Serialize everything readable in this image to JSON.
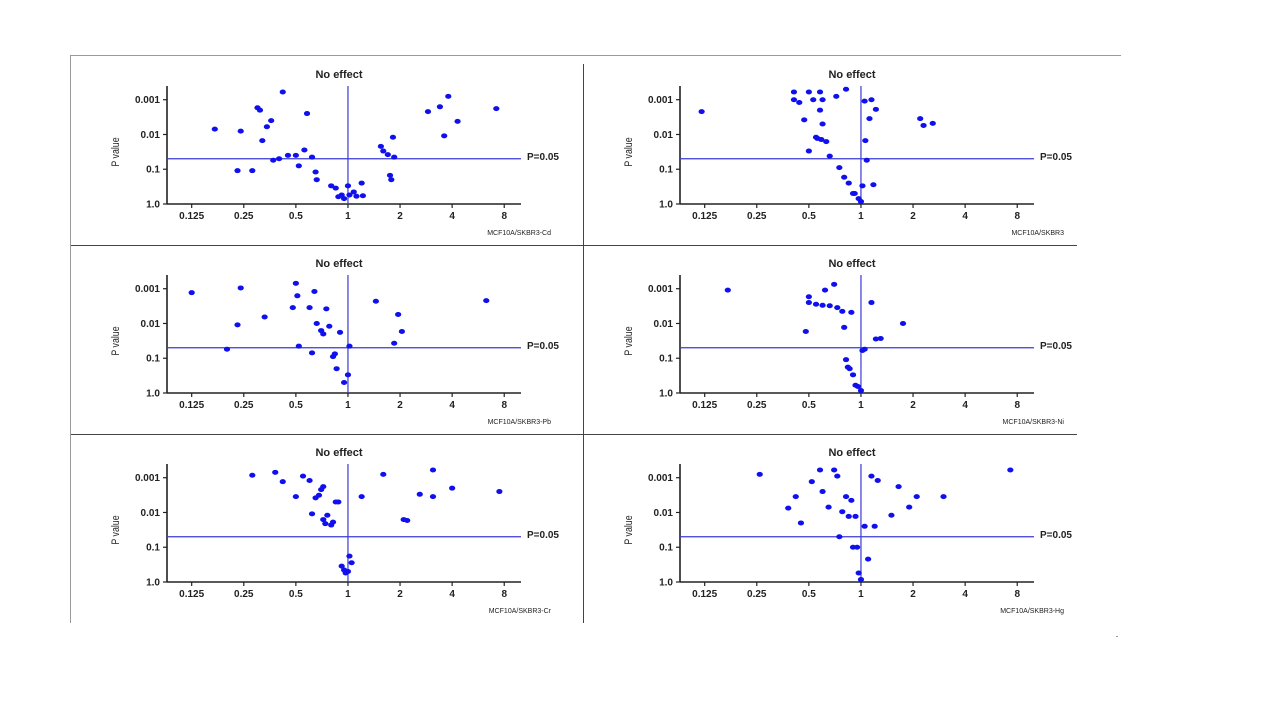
{
  "chart_data": [
    {
      "type": "scatter",
      "title": "No effect",
      "ylabel": "P value",
      "panel_label": "MCF10A/SKBR3-Cd",
      "threshold_label": "P=0.05",
      "x_scale": "log2",
      "y_scale": "log10-reversed",
      "xlim": [
        0.09,
        10
      ],
      "ylim": [
        1.0,
        0.0006
      ],
      "x_ticks": [
        0.125,
        0.25,
        0.5,
        1,
        2,
        4,
        8
      ],
      "x_tick_labels": [
        "0.125",
        "0.25",
        "0.5",
        "1",
        "2",
        "4",
        "8"
      ],
      "y_ticks": [
        0.001,
        0.01,
        0.1,
        1.0
      ],
      "y_tick_labels": [
        "0.001",
        "0.01",
        "0.1",
        "1.0"
      ],
      "reference_lines": {
        "x": 1,
        "y": 0.05
      },
      "points": [
        [
          0.17,
          0.007
        ],
        [
          0.23,
          0.11
        ],
        [
          0.24,
          0.008
        ],
        [
          0.28,
          0.11
        ],
        [
          0.3,
          0.0017
        ],
        [
          0.31,
          0.002
        ],
        [
          0.32,
          0.015
        ],
        [
          0.34,
          0.006
        ],
        [
          0.36,
          0.004
        ],
        [
          0.37,
          0.055
        ],
        [
          0.4,
          0.05
        ],
        [
          0.42,
          0.0006
        ],
        [
          0.45,
          0.04
        ],
        [
          0.5,
          0.04
        ],
        [
          0.52,
          0.08
        ],
        [
          0.56,
          0.028
        ],
        [
          0.58,
          0.0025
        ],
        [
          0.62,
          0.045
        ],
        [
          0.65,
          0.12
        ],
        [
          0.66,
          0.2
        ],
        [
          0.8,
          0.3
        ],
        [
          0.85,
          0.35
        ],
        [
          0.88,
          0.62
        ],
        [
          0.92,
          0.55
        ],
        [
          0.95,
          0.7
        ],
        [
          1.0,
          0.3
        ],
        [
          1.02,
          0.55
        ],
        [
          1.08,
          0.45
        ],
        [
          1.12,
          0.6
        ],
        [
          1.2,
          0.25
        ],
        [
          1.22,
          0.58
        ],
        [
          1.55,
          0.022
        ],
        [
          1.6,
          0.03
        ],
        [
          1.7,
          0.038
        ],
        [
          1.75,
          0.15
        ],
        [
          1.78,
          0.2
        ],
        [
          1.82,
          0.012
        ],
        [
          1.85,
          0.045
        ],
        [
          2.9,
          0.0022
        ],
        [
          3.4,
          0.0016
        ],
        [
          3.6,
          0.011
        ],
        [
          3.8,
          0.0008
        ],
        [
          4.3,
          0.0042
        ],
        [
          7.2,
          0.0018
        ]
      ]
    },
    {
      "type": "scatter",
      "title": "No effect",
      "ylabel": "P value",
      "panel_label": "MCF10A/SKBR3",
      "threshold_label": "P=0.05",
      "x_scale": "log2",
      "y_scale": "log10-reversed",
      "xlim": [
        0.09,
        10
      ],
      "ylim": [
        1.0,
        0.0006
      ],
      "x_ticks": [
        0.125,
        0.25,
        0.5,
        1,
        2,
        4,
        8
      ],
      "x_tick_labels": [
        "0.125",
        "0.25",
        "0.5",
        "1",
        "2",
        "4",
        "8"
      ],
      "y_ticks": [
        0.001,
        0.01,
        0.1,
        1.0
      ],
      "y_tick_labels": [
        "0.001",
        "0.01",
        "0.1",
        "1.0"
      ],
      "reference_lines": {
        "x": 1,
        "y": 0.05
      },
      "points": [
        [
          0.12,
          0.0022
        ],
        [
          0.41,
          0.0006
        ],
        [
          0.41,
          0.001
        ],
        [
          0.44,
          0.0012
        ],
        [
          0.47,
          0.0038
        ],
        [
          0.5,
          0.0006
        ],
        [
          0.5,
          0.03
        ],
        [
          0.53,
          0.001
        ],
        [
          0.55,
          0.012
        ],
        [
          0.56,
          0.013
        ],
        [
          0.58,
          0.0006
        ],
        [
          0.58,
          0.002
        ],
        [
          0.59,
          0.014
        ],
        [
          0.6,
          0.005
        ],
        [
          0.6,
          0.001
        ],
        [
          0.63,
          0.016
        ],
        [
          0.66,
          0.042
        ],
        [
          0.72,
          0.0008
        ],
        [
          0.75,
          0.09
        ],
        [
          0.8,
          0.17
        ],
        [
          0.82,
          0.0005
        ],
        [
          0.85,
          0.25
        ],
        [
          0.9,
          0.5
        ],
        [
          0.92,
          0.5
        ],
        [
          0.97,
          0.7
        ],
        [
          1.0,
          0.85
        ],
        [
          1.02,
          0.3
        ],
        [
          1.05,
          0.0011
        ],
        [
          1.06,
          0.015
        ],
        [
          1.08,
          0.055
        ],
        [
          1.12,
          0.0035
        ],
        [
          1.15,
          0.001
        ],
        [
          1.18,
          0.28
        ],
        [
          1.22,
          0.0019
        ],
        [
          2.2,
          0.0035
        ],
        [
          2.3,
          0.0055
        ],
        [
          2.6,
          0.0048
        ]
      ]
    },
    {
      "type": "scatter",
      "title": "No effect",
      "ylabel": "P value",
      "panel_label": "MCF10A/SKBR3-Pb",
      "threshold_label": "P=0.05",
      "x_scale": "log2",
      "y_scale": "log10-reversed",
      "xlim": [
        0.09,
        10
      ],
      "ylim": [
        1.0,
        0.0006
      ],
      "x_ticks": [
        0.125,
        0.25,
        0.5,
        1,
        2,
        4,
        8
      ],
      "x_tick_labels": [
        "0.125",
        "0.25",
        "0.5",
        "1",
        "2",
        "4",
        "8"
      ],
      "y_ticks": [
        0.001,
        0.01,
        0.1,
        1.0
      ],
      "y_tick_labels": [
        "0.001",
        "0.01",
        "0.1",
        "1.0"
      ],
      "reference_lines": {
        "x": 1,
        "y": 0.05
      },
      "points": [
        [
          0.125,
          0.0013
        ],
        [
          0.2,
          0.055
        ],
        [
          0.23,
          0.011
        ],
        [
          0.24,
          0.00095
        ],
        [
          0.33,
          0.0065
        ],
        [
          0.48,
          0.0035
        ],
        [
          0.5,
          0.0007
        ],
        [
          0.51,
          0.0016
        ],
        [
          0.52,
          0.045
        ],
        [
          0.6,
          0.0035
        ],
        [
          0.62,
          0.07
        ],
        [
          0.64,
          0.0012
        ],
        [
          0.66,
          0.01
        ],
        [
          0.7,
          0.016
        ],
        [
          0.72,
          0.02
        ],
        [
          0.75,
          0.0038
        ],
        [
          0.78,
          0.012
        ],
        [
          0.82,
          0.09
        ],
        [
          0.84,
          0.075
        ],
        [
          0.86,
          0.2
        ],
        [
          0.9,
          0.018
        ],
        [
          0.95,
          0.5
        ],
        [
          1.0,
          0.3
        ],
        [
          1.02,
          0.045
        ],
        [
          1.45,
          0.0023
        ],
        [
          1.85,
          0.037
        ],
        [
          1.95,
          0.0055
        ],
        [
          2.05,
          0.017
        ],
        [
          6.3,
          0.0022
        ]
      ]
    },
    {
      "type": "scatter",
      "title": "No effect",
      "ylabel": "P value",
      "panel_label": "MCF10A/SKBR3-Ni",
      "threshold_label": "P=0.05",
      "x_scale": "log2",
      "y_scale": "log10-reversed",
      "xlim": [
        0.09,
        10
      ],
      "ylim": [
        1.0,
        0.0006
      ],
      "x_ticks": [
        0.125,
        0.25,
        0.5,
        1,
        2,
        4,
        8
      ],
      "x_tick_labels": [
        "0.125",
        "0.25",
        "0.5",
        "1",
        "2",
        "4",
        "8"
      ],
      "y_ticks": [
        0.001,
        0.01,
        0.1,
        1.0
      ],
      "y_tick_labels": [
        "0.001",
        "0.01",
        "0.1",
        "1.0"
      ],
      "reference_lines": {
        "x": 1,
        "y": 0.05
      },
      "points": [
        [
          0.17,
          0.0011
        ],
        [
          0.48,
          0.017
        ],
        [
          0.5,
          0.0017
        ],
        [
          0.5,
          0.0025
        ],
        [
          0.55,
          0.0028
        ],
        [
          0.6,
          0.003
        ],
        [
          0.62,
          0.0011
        ],
        [
          0.66,
          0.0031
        ],
        [
          0.7,
          0.00075
        ],
        [
          0.73,
          0.0035
        ],
        [
          0.78,
          0.0045
        ],
        [
          0.8,
          0.013
        ],
        [
          0.82,
          0.11
        ],
        [
          0.84,
          0.18
        ],
        [
          0.86,
          0.2
        ],
        [
          0.88,
          0.0048
        ],
        [
          0.9,
          0.3
        ],
        [
          0.93,
          0.6
        ],
        [
          0.96,
          0.65
        ],
        [
          1.0,
          0.85
        ],
        [
          1.02,
          0.06
        ],
        [
          1.05,
          0.055
        ],
        [
          1.15,
          0.0025
        ],
        [
          1.22,
          0.028
        ],
        [
          1.3,
          0.027
        ],
        [
          1.75,
          0.01
        ]
      ]
    },
    {
      "type": "scatter",
      "title": "No effect",
      "ylabel": "P value",
      "panel_label": "MCF10A/SKBR3-Cr",
      "threshold_label": "P=0.05",
      "x_scale": "log2",
      "y_scale": "log10-reversed",
      "xlim": [
        0.09,
        10
      ],
      "ylim": [
        1.0,
        0.0006
      ],
      "x_ticks": [
        0.125,
        0.25,
        0.5,
        1,
        2,
        4,
        8
      ],
      "x_tick_labels": [
        "0.125",
        "0.25",
        "0.5",
        "1",
        "2",
        "4",
        "8"
      ],
      "y_ticks": [
        0.001,
        0.01,
        0.1,
        1.0
      ],
      "y_tick_labels": [
        "0.001",
        "0.01",
        "0.1",
        "1.0"
      ],
      "reference_lines": {
        "x": 1,
        "y": 0.05
      },
      "points": [
        [
          0.28,
          0.00085
        ],
        [
          0.38,
          0.0007
        ],
        [
          0.42,
          0.0013
        ],
        [
          0.5,
          0.0035
        ],
        [
          0.55,
          0.0009
        ],
        [
          0.6,
          0.0012
        ],
        [
          0.62,
          0.011
        ],
        [
          0.65,
          0.0038
        ],
        [
          0.68,
          0.0032
        ],
        [
          0.7,
          0.0022
        ],
        [
          0.72,
          0.0018
        ],
        [
          0.72,
          0.016
        ],
        [
          0.74,
          0.021
        ],
        [
          0.76,
          0.012
        ],
        [
          0.8,
          0.023
        ],
        [
          0.82,
          0.019
        ],
        [
          0.85,
          0.005
        ],
        [
          0.88,
          0.005
        ],
        [
          0.92,
          0.35
        ],
        [
          0.95,
          0.45
        ],
        [
          0.97,
          0.55
        ],
        [
          1.0,
          0.5
        ],
        [
          1.02,
          0.18
        ],
        [
          1.05,
          0.28
        ],
        [
          1.2,
          0.0035
        ],
        [
          1.6,
          0.0008
        ],
        [
          2.1,
          0.016
        ],
        [
          2.2,
          0.017
        ],
        [
          2.6,
          0.003
        ],
        [
          3.1,
          0.0006
        ],
        [
          3.1,
          0.0035
        ],
        [
          4.0,
          0.002
        ],
        [
          7.5,
          0.0025
        ]
      ]
    },
    {
      "type": "scatter",
      "title": "No effect",
      "ylabel": "P value",
      "panel_label": "MCF10A/SKBR3-Hg",
      "threshold_label": "P=0.05",
      "x_scale": "log2",
      "y_scale": "log10-reversed",
      "xlim": [
        0.09,
        10
      ],
      "ylim": [
        1.0,
        0.0006
      ],
      "x_ticks": [
        0.125,
        0.25,
        0.5,
        1,
        2,
        4,
        8
      ],
      "x_tick_labels": [
        "0.125",
        "0.25",
        "0.5",
        "1",
        "2",
        "4",
        "8"
      ],
      "y_ticks": [
        0.001,
        0.01,
        0.1,
        1.0
      ],
      "y_tick_labels": [
        "0.001",
        "0.01",
        "0.1",
        "1.0"
      ],
      "reference_lines": {
        "x": 1,
        "y": 0.05
      },
      "points": [
        [
          0.26,
          0.0008
        ],
        [
          0.38,
          0.0075
        ],
        [
          0.42,
          0.0035
        ],
        [
          0.45,
          0.02
        ],
        [
          0.52,
          0.0013
        ],
        [
          0.58,
          0.0006
        ],
        [
          0.6,
          0.0025
        ],
        [
          0.65,
          0.007
        ],
        [
          0.7,
          0.0006
        ],
        [
          0.73,
          0.0009
        ],
        [
          0.75,
          0.05
        ],
        [
          0.78,
          0.0095
        ],
        [
          0.82,
          0.0035
        ],
        [
          0.85,
          0.013
        ],
        [
          0.88,
          0.0045
        ],
        [
          0.9,
          0.1
        ],
        [
          0.93,
          0.013
        ],
        [
          0.95,
          0.1
        ],
        [
          0.97,
          0.55
        ],
        [
          1.0,
          0.85
        ],
        [
          1.05,
          0.025
        ],
        [
          1.1,
          0.22
        ],
        [
          1.15,
          0.0009
        ],
        [
          1.2,
          0.025
        ],
        [
          1.25,
          0.0012
        ],
        [
          1.5,
          0.012
        ],
        [
          1.65,
          0.0018
        ],
        [
          1.9,
          0.007
        ],
        [
          2.1,
          0.0035
        ],
        [
          3.0,
          0.0035
        ],
        [
          7.3,
          0.0006
        ]
      ]
    }
  ]
}
